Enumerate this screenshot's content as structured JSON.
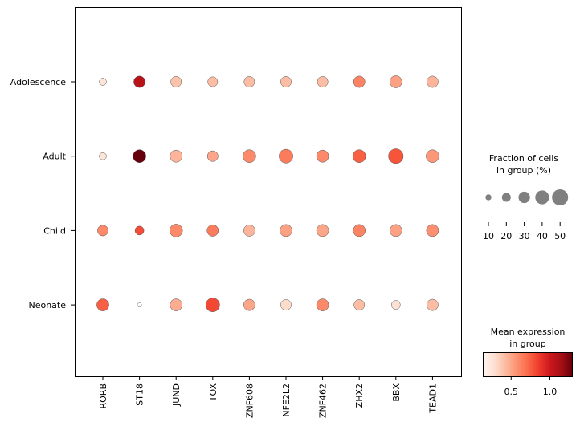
{
  "chart_data": {
    "type": "dotplot",
    "groups": [
      "Adolescence",
      "Adult",
      "Child",
      "Neonate"
    ],
    "genes": [
      "RORB",
      "ST18",
      "JUND",
      "TOX",
      "ZNF608",
      "NFE2L2",
      "ZNF462",
      "ZHX2",
      "BBX",
      "TEAD1"
    ],
    "fraction_percent": [
      [
        14,
        30,
        27,
        24,
        27,
        27,
        27,
        30,
        33,
        30
      ],
      [
        14,
        36,
        33,
        27,
        36,
        40,
        33,
        36,
        44,
        36
      ],
      [
        27,
        20,
        36,
        30,
        30,
        33,
        33,
        33,
        33,
        33
      ],
      [
        33,
        5,
        33,
        40,
        30,
        27,
        33,
        27,
        20,
        30
      ]
    ],
    "mean_expression": [
      [
        0.25,
        1.08,
        0.4,
        0.42,
        0.42,
        0.42,
        0.42,
        0.62,
        0.52,
        0.45
      ],
      [
        0.25,
        1.29,
        0.45,
        0.5,
        0.6,
        0.65,
        0.6,
        0.75,
        0.78,
        0.55
      ],
      [
        0.6,
        0.8,
        0.6,
        0.65,
        0.45,
        0.52,
        0.5,
        0.62,
        0.52,
        0.58
      ],
      [
        0.75,
        0.2,
        0.48,
        0.82,
        0.5,
        0.3,
        0.6,
        0.42,
        0.28,
        0.42
      ]
    ],
    "colormap": "Reds",
    "color_range": [
      0.14,
      1.29
    ],
    "size_legend": {
      "title_line1": "Fraction of cells",
      "title_line2": "in group (%)",
      "values": [
        10,
        20,
        30,
        40,
        50
      ],
      "labels": [
        "10",
        "20",
        "30",
        "40",
        "50"
      ],
      "dot_color": "#808080"
    },
    "color_legend": {
      "title_line1": "Mean expression",
      "title_line2": "in group",
      "ticks": [
        0.5,
        1.0
      ],
      "tick_labels": [
        "0.5",
        "1.0"
      ]
    }
  }
}
